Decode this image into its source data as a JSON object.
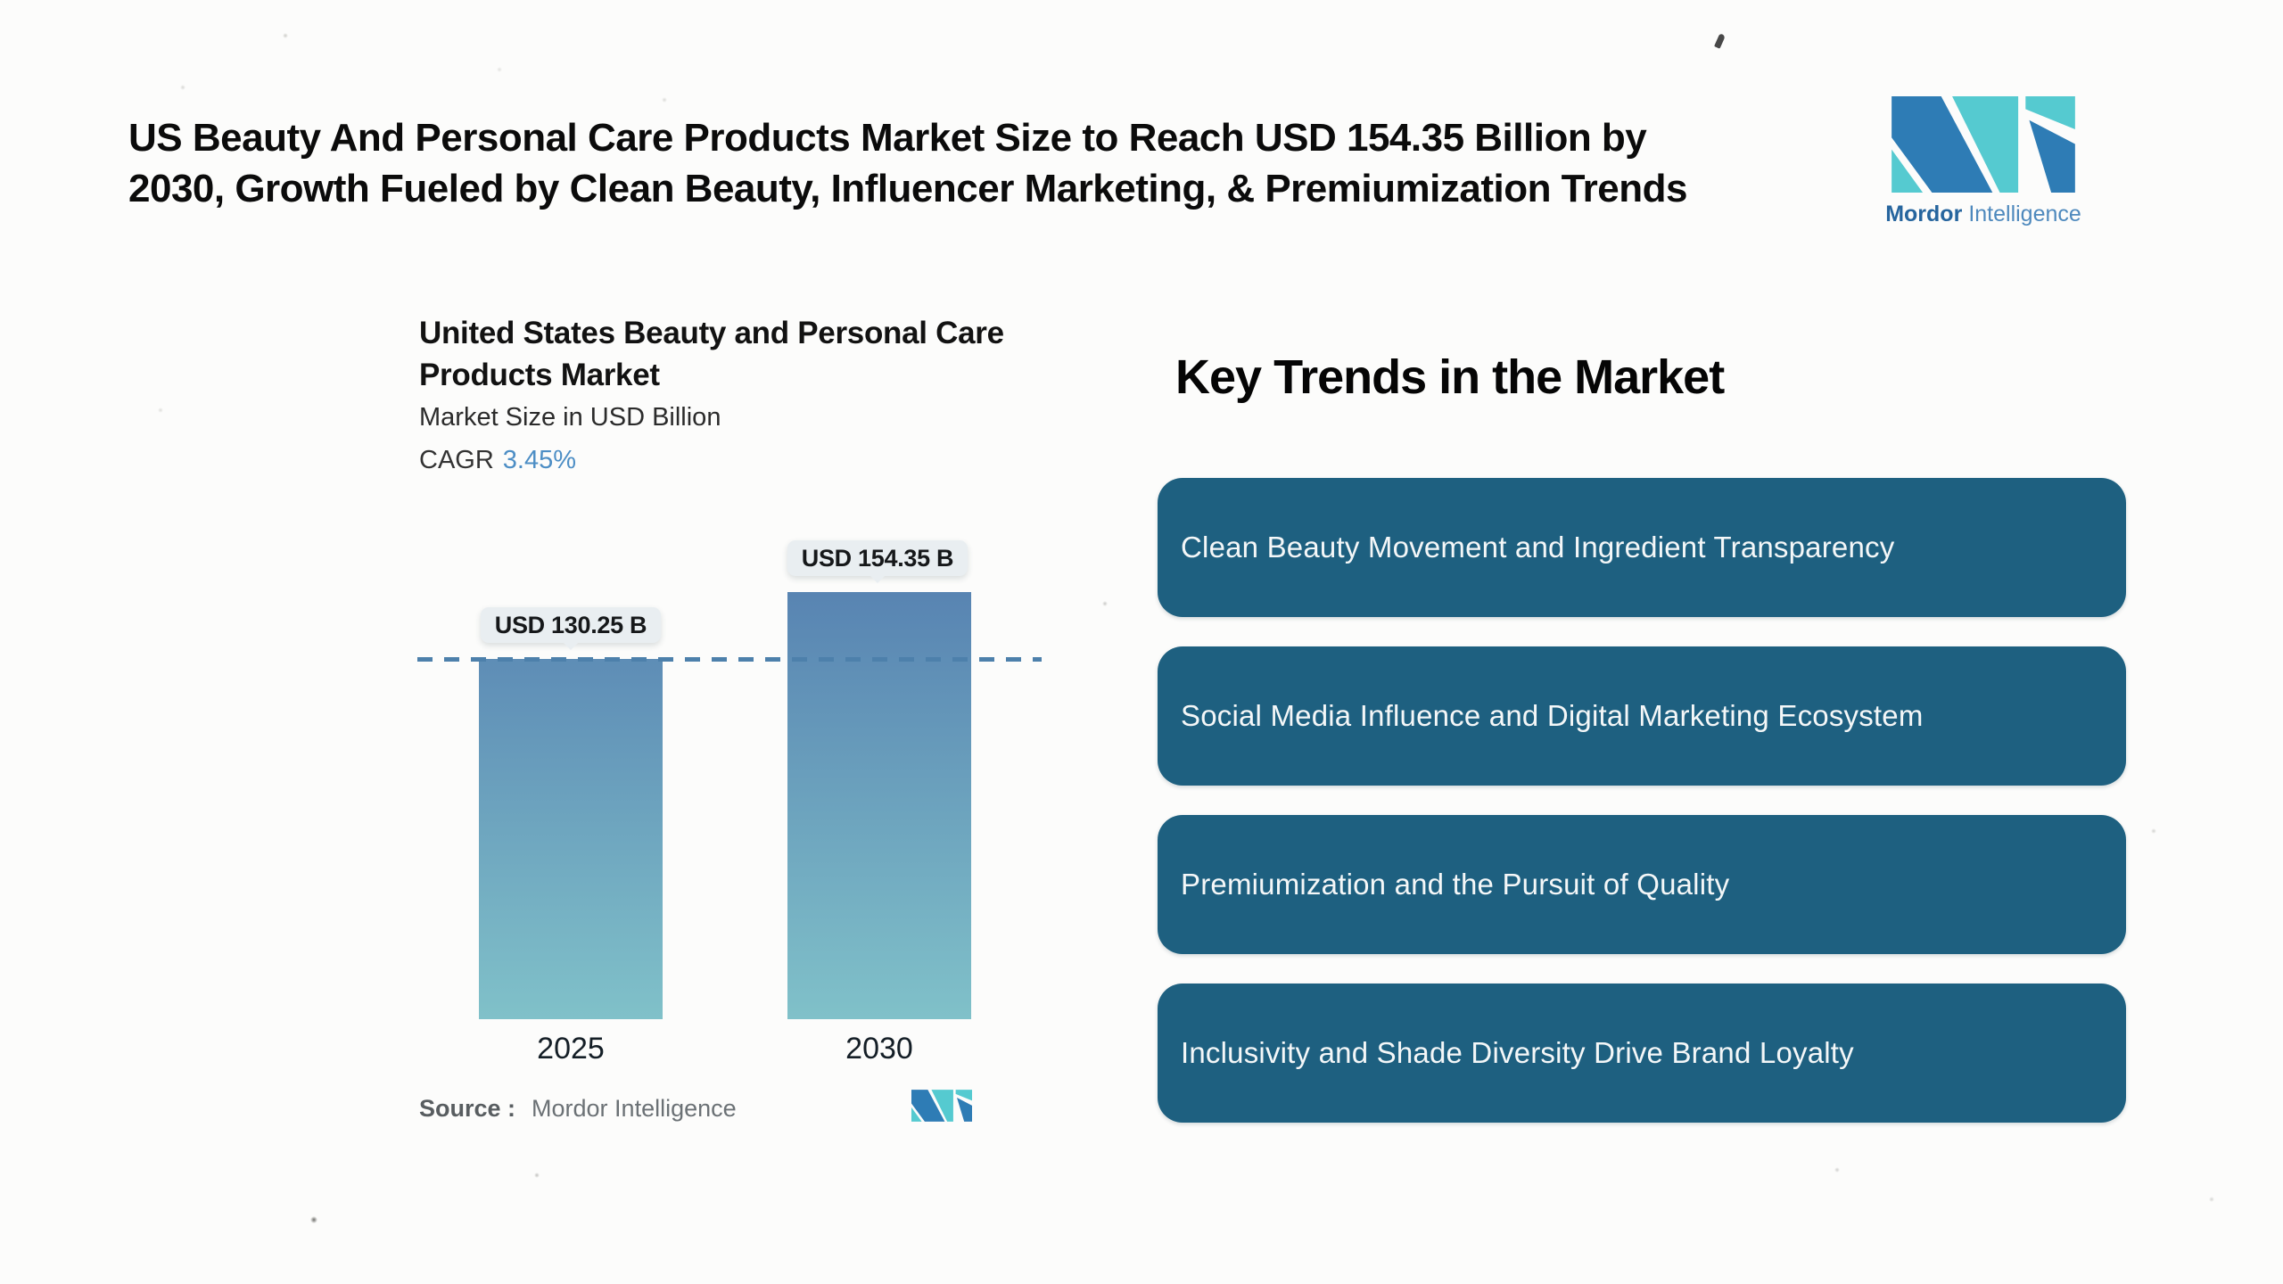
{
  "page": {
    "background": "#fcfcfb"
  },
  "header": {
    "title_lines": [
      "US Beauty And Personal Care Products Market Size to Reach USD 154.35 Billion by",
      "2030, Growth Fueled by Clean Beauty, Influencer Marketing, & Premiumization Trends"
    ]
  },
  "brand": {
    "name_primary": "Mordor",
    "name_secondary": "Intelligence",
    "logo_blue": "#2e7cb5",
    "logo_teal": "#55cad0"
  },
  "chart": {
    "title_lines": [
      "United States Beauty and Personal Care",
      "Products Market"
    ],
    "subtitle": "Market Size in USD Billion",
    "cagr_label": "CAGR",
    "cagr_value": "3.45%",
    "cagr_value_color": "#4d8ec5",
    "source_label": "Source :",
    "source_value": "Mordor Intelligence",
    "bar_gradient_top": "#5884b2",
    "bar_gradient_bottom": "#80c1c9",
    "dashed_line_color": "#4d80ab",
    "callout_bg": "#e9eef1"
  },
  "chart_data": {
    "type": "bar",
    "title": "United States Beauty and Personal Care Products Market",
    "ylabel": "Market Size in USD Billion",
    "categories": [
      "2025",
      "2030"
    ],
    "values": [
      130.25,
      154.35
    ],
    "value_labels": [
      "USD 130.25 B",
      "USD 154.35 B"
    ],
    "cagr_percent": 3.45,
    "reference_line_value": 130.25,
    "ylim": [
      0,
      154.35
    ],
    "grid": false,
    "legend": false
  },
  "trends": {
    "heading": "Key Trends in the Market",
    "pill_color": "#1e6080",
    "items": [
      "Clean Beauty Movement and Ingredient Transparency",
      "Social Media Influence and Digital Marketing Ecosystem",
      "Premiumization and the Pursuit of Quality",
      "Inclusivity and Shade Diversity Drive Brand Loyalty"
    ]
  }
}
